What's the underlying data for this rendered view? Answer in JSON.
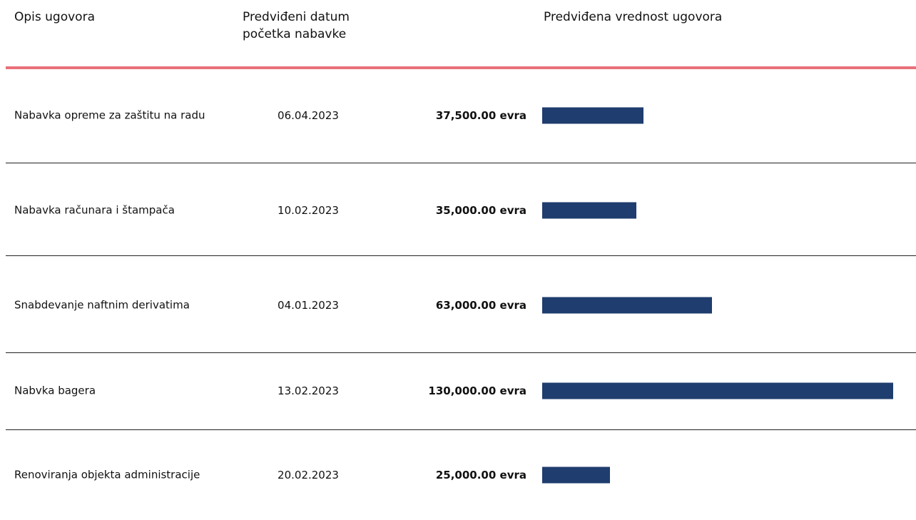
{
  "chart_data": {
    "type": "bar",
    "orientation": "horizontal",
    "columns": [
      "Opis ugovora",
      "Predviđeni datum početka nabavke",
      "Predviđena vrednost ugovora"
    ],
    "categories": [
      "Nabavka opreme za zaštitu na radu",
      "Nabavka računara i štampača",
      "Snabdevanje naftnim derivatima",
      "Nabvka bagera",
      "Renoviranja objekta administracije"
    ],
    "dates": [
      "06.04.2023",
      "10.02.2023",
      "04.01.2023",
      "13.02.2023",
      "20.02.2023"
    ],
    "values": [
      37500,
      35000,
      63000,
      130000,
      25000
    ],
    "value_labels": [
      "37,500.00 evra",
      "35,000.00 evra",
      "63,000.00 evra",
      "130,000.00 evra",
      "25,000.00 evra"
    ],
    "color": "#1f3d6e",
    "xlim": [
      0,
      130000
    ]
  }
}
